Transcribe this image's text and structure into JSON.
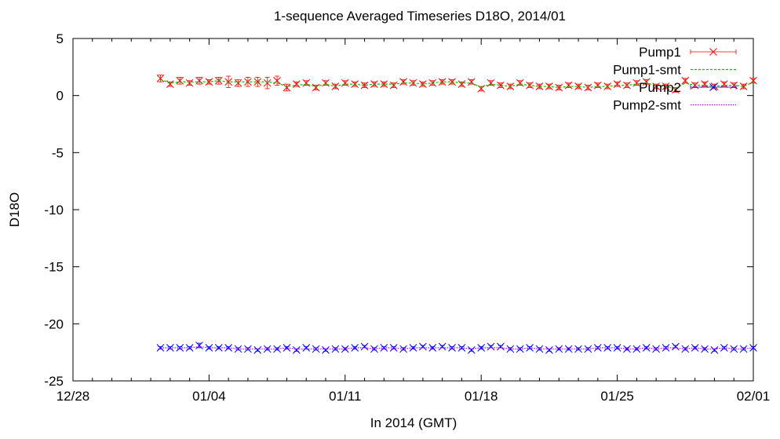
{
  "chart_data": {
    "type": "line",
    "title": "1-sequence Averaged Timeseries D18O, 2014/01",
    "xlabel": "In 2014 (GMT)",
    "ylabel": "D18O",
    "ylim": [
      -25,
      5
    ],
    "xlim": [
      -4,
      31
    ],
    "x_unit": "days from 2014/01/01",
    "x_ticks": [
      {
        "value": -4,
        "label": "12/28"
      },
      {
        "value": 3,
        "label": "01/04"
      },
      {
        "value": 10,
        "label": "01/11"
      },
      {
        "value": 17,
        "label": "01/18"
      },
      {
        "value": 24,
        "label": "01/25"
      },
      {
        "value": 31,
        "label": "02/01"
      }
    ],
    "y_ticks": [
      {
        "value": 5,
        "label": "5"
      },
      {
        "value": 0,
        "label": "0"
      },
      {
        "value": -5,
        "label": "-5"
      },
      {
        "value": -10,
        "label": "-10"
      },
      {
        "value": -15,
        "label": "-15"
      },
      {
        "value": -20,
        "label": "-20"
      },
      {
        "value": -25,
        "label": "-25"
      }
    ],
    "grid": false,
    "legend_position": "top-right",
    "colors": {
      "pump1": "#ff0000",
      "pump1_smt": "#00c000",
      "pump2": "#0000ff",
      "pump2_smt": "#c000ff"
    },
    "series": [
      {
        "name": "Pump1",
        "style": "points-errorbars",
        "color": "#ff0000",
        "x": [
          0.5,
          1.0,
          1.5,
          2.0,
          2.5,
          3.0,
          3.5,
          4.0,
          4.5,
          5.0,
          5.5,
          6.0,
          6.5,
          7.0,
          7.5,
          8.0,
          8.5,
          9.0,
          9.5,
          10.0,
          10.5,
          11.0,
          11.5,
          12.0,
          12.5,
          13.0,
          13.5,
          14.0,
          14.5,
          15.0,
          15.5,
          16.0,
          16.5,
          17.0,
          17.5,
          18.0,
          18.5,
          19.0,
          19.5,
          20.0,
          20.5,
          21.0,
          21.5,
          22.0,
          22.5,
          23.0,
          23.5,
          24.0,
          24.5,
          25.0,
          25.5,
          26.0,
          26.5,
          27.0,
          27.5,
          28.0,
          28.5,
          29.0,
          29.5,
          30.0,
          30.5,
          31.0
        ],
        "y": [
          1.5,
          1.0,
          1.3,
          1.1,
          1.3,
          1.2,
          1.3,
          1.2,
          1.1,
          1.2,
          1.2,
          1.1,
          1.3,
          0.7,
          1.0,
          1.1,
          0.7,
          1.1,
          0.8,
          1.1,
          1.0,
          0.9,
          1.0,
          1.0,
          0.9,
          1.2,
          1.1,
          1.0,
          1.1,
          1.2,
          1.2,
          1.0,
          1.2,
          0.6,
          1.1,
          0.9,
          0.8,
          1.1,
          0.9,
          0.8,
          0.8,
          0.7,
          0.9,
          0.8,
          0.7,
          0.9,
          0.8,
          1.0,
          0.9,
          1.1,
          1.2,
          0.8,
          0.8,
          0.5,
          1.3,
          0.9,
          1.0,
          0.8,
          1.0,
          0.9,
          0.8,
          1.3
        ],
        "err": [
          0.3,
          0.2,
          0.3,
          0.2,
          0.3,
          0.2,
          0.3,
          0.5,
          0.3,
          0.4,
          0.4,
          0.5,
          0.4,
          0.3,
          0.2,
          0.2,
          0.2,
          0.2,
          0.2,
          0.2,
          0.2,
          0.2,
          0.2,
          0.2,
          0.2,
          0.2,
          0.2,
          0.2,
          0.2,
          0.2,
          0.2,
          0.2,
          0.2,
          0.2,
          0.2,
          0.2,
          0.2,
          0.2,
          0.2,
          0.2,
          0.2,
          0.2,
          0.2,
          0.2,
          0.2,
          0.2,
          0.2,
          0.2,
          0.2,
          0.2,
          0.2,
          0.2,
          0.2,
          0.2,
          0.2,
          0.2,
          0.2,
          0.2,
          0.2,
          0.2,
          0.2,
          0.2
        ]
      },
      {
        "name": "Pump1-smt",
        "style": "dashed-line",
        "color": "#00c000",
        "x": [
          0.5,
          1.0,
          1.5,
          2.0,
          2.5,
          3.0,
          3.5,
          4.0,
          4.5,
          5.0,
          5.5,
          6.0,
          6.5,
          7.0,
          7.5,
          8.0,
          8.5,
          9.0,
          9.5,
          10.0,
          10.5,
          11.0,
          11.5,
          12.0,
          12.5,
          13.0,
          13.5,
          14.0,
          14.5,
          15.0,
          15.5,
          16.0,
          16.5,
          17.0,
          17.5,
          18.0,
          18.5,
          19.0,
          19.5,
          20.0,
          20.5,
          21.0,
          21.5,
          22.0,
          22.5,
          23.0,
          23.5,
          24.0,
          24.5,
          25.0,
          25.5,
          26.0,
          26.5,
          27.0,
          27.5,
          28.0,
          28.5,
          29.0,
          29.5,
          30.0,
          30.5,
          31.0
        ],
        "y": [
          1.4,
          1.1,
          1.2,
          1.2,
          1.2,
          1.2,
          1.3,
          1.2,
          1.2,
          1.2,
          1.2,
          1.2,
          1.1,
          0.8,
          0.9,
          1.0,
          0.8,
          1.0,
          0.8,
          1.0,
          1.0,
          0.9,
          1.0,
          1.0,
          1.0,
          1.1,
          1.1,
          1.0,
          1.1,
          1.2,
          1.2,
          1.1,
          1.1,
          0.7,
          1.0,
          0.9,
          0.8,
          1.0,
          0.9,
          0.8,
          0.8,
          0.7,
          0.8,
          0.8,
          0.7,
          0.8,
          0.8,
          0.9,
          0.9,
          1.0,
          1.1,
          0.9,
          0.8,
          0.6,
          1.1,
          0.9,
          0.9,
          0.8,
          0.9,
          0.9,
          0.8,
          1.2
        ]
      },
      {
        "name": "Pump2",
        "style": "points-errorbars",
        "color": "#0000ff",
        "x": [
          0.5,
          1.0,
          1.5,
          2.0,
          2.5,
          3.0,
          3.5,
          4.0,
          4.5,
          5.0,
          5.5,
          6.0,
          6.5,
          7.0,
          7.5,
          8.0,
          8.5,
          9.0,
          9.5,
          10.0,
          10.5,
          11.0,
          11.5,
          12.0,
          12.5,
          13.0,
          13.5,
          14.0,
          14.5,
          15.0,
          15.5,
          16.0,
          16.5,
          17.0,
          17.5,
          18.0,
          18.5,
          19.0,
          19.5,
          20.0,
          20.5,
          21.0,
          21.5,
          22.0,
          22.5,
          23.0,
          23.5,
          24.0,
          24.5,
          25.0,
          25.5,
          26.0,
          26.5,
          27.0,
          27.5,
          28.0,
          28.5,
          29.0,
          29.5,
          30.0,
          30.5,
          31.0
        ],
        "y": [
          -22.1,
          -22.1,
          -22.1,
          -22.1,
          -21.9,
          -22.1,
          -22.1,
          -22.1,
          -22.2,
          -22.2,
          -22.3,
          -22.2,
          -22.2,
          -22.1,
          -22.3,
          -22.1,
          -22.2,
          -22.3,
          -22.2,
          -22.2,
          -22.1,
          -22.0,
          -22.2,
          -22.1,
          -22.1,
          -22.2,
          -22.1,
          -22.0,
          -22.1,
          -22.0,
          -22.1,
          -22.1,
          -22.3,
          -22.1,
          -22.0,
          -22.0,
          -22.2,
          -22.2,
          -22.1,
          -22.2,
          -22.3,
          -22.2,
          -22.2,
          -22.2,
          -22.2,
          -22.1,
          -22.1,
          -22.1,
          -22.2,
          -22.2,
          -22.1,
          -22.2,
          -22.1,
          -22.0,
          -22.2,
          -22.1,
          -22.2,
          -22.3,
          -22.1,
          -22.2,
          -22.2,
          -22.1
        ],
        "err": [
          0.1,
          0.1,
          0.1,
          0.1,
          0.2,
          0.1,
          0.1,
          0.1,
          0.1,
          0.1,
          0.1,
          0.1,
          0.1,
          0.1,
          0.1,
          0.1,
          0.1,
          0.1,
          0.1,
          0.1,
          0.1,
          0.1,
          0.1,
          0.1,
          0.1,
          0.1,
          0.1,
          0.1,
          0.1,
          0.1,
          0.1,
          0.1,
          0.1,
          0.1,
          0.1,
          0.1,
          0.1,
          0.1,
          0.1,
          0.1,
          0.1,
          0.1,
          0.1,
          0.1,
          0.1,
          0.1,
          0.1,
          0.1,
          0.1,
          0.1,
          0.1,
          0.1,
          0.1,
          0.1,
          0.1,
          0.1,
          0.1,
          0.1,
          0.1,
          0.1,
          0.1,
          0.1
        ]
      },
      {
        "name": "Pump2-smt",
        "style": "dotted-line",
        "color": "#c000ff",
        "x": [
          0.5,
          1.0,
          1.5,
          2.0,
          2.5,
          3.0,
          3.5,
          4.0,
          4.5,
          5.0,
          5.5,
          6.0,
          6.5,
          7.0,
          7.5,
          8.0,
          8.5,
          9.0,
          9.5,
          10.0,
          10.5,
          11.0,
          11.5,
          12.0,
          12.5,
          13.0,
          13.5,
          14.0,
          14.5,
          15.0,
          15.5,
          16.0,
          16.5,
          17.0,
          17.5,
          18.0,
          18.5,
          19.0,
          19.5,
          20.0,
          20.5,
          21.0,
          21.5,
          22.0,
          22.5,
          23.0,
          23.5,
          24.0,
          24.5,
          25.0,
          25.5,
          26.0,
          26.5,
          27.0,
          27.5,
          28.0,
          28.5,
          29.0,
          29.5,
          30.0,
          30.5,
          31.0
        ],
        "y": [
          -22.1,
          -22.1,
          -22.1,
          -22.1,
          -22.0,
          -22.1,
          -22.1,
          -22.1,
          -22.2,
          -22.2,
          -22.2,
          -22.2,
          -22.2,
          -22.1,
          -22.2,
          -22.2,
          -22.2,
          -22.2,
          -22.2,
          -22.2,
          -22.1,
          -22.1,
          -22.2,
          -22.1,
          -22.1,
          -22.2,
          -22.1,
          -22.1,
          -22.1,
          -22.1,
          -22.1,
          -22.1,
          -22.2,
          -22.1,
          -22.1,
          -22.1,
          -22.2,
          -22.2,
          -22.1,
          -22.2,
          -22.2,
          -22.2,
          -22.2,
          -22.2,
          -22.2,
          -22.1,
          -22.1,
          -22.1,
          -22.2,
          -22.2,
          -22.1,
          -22.2,
          -22.1,
          -22.1,
          -22.2,
          -22.1,
          -22.2,
          -22.2,
          -22.1,
          -22.2,
          -22.2,
          -22.1
        ]
      }
    ]
  }
}
